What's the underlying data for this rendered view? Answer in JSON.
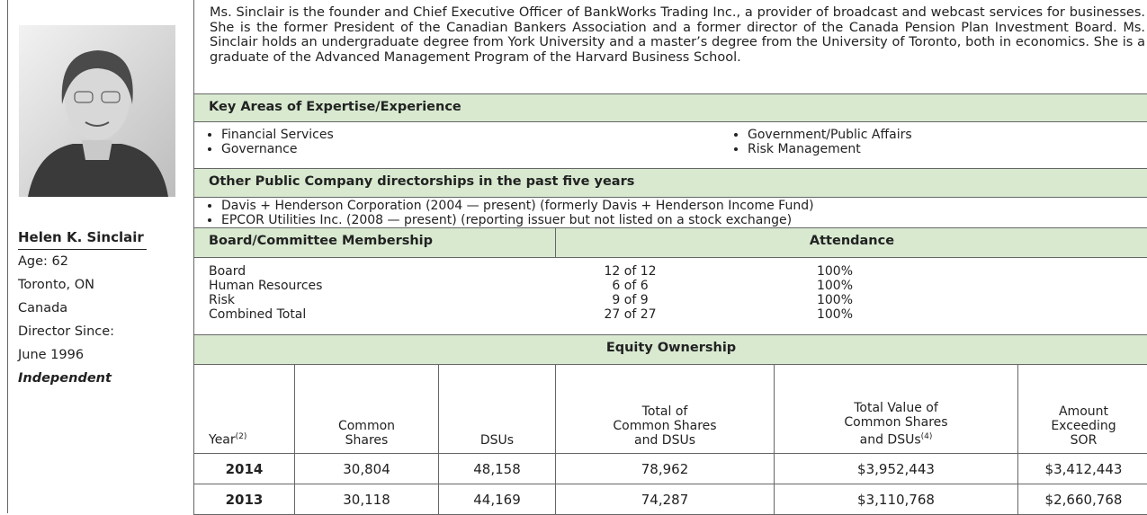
{
  "profile": {
    "name": "Helen K. Sinclair",
    "details": [
      "Age: 62",
      "Toronto, ON",
      "Canada",
      "Director Since:",
      "June 1996"
    ],
    "status": "Independent"
  },
  "bio": "Ms. Sinclair is the founder and Chief Executive Officer of BankWorks Trading Inc., a provider of broadcast and webcast services for businesses. She is the former President of the Canadian Bankers Association and a former director of the Canada Pension Plan Investment Board. Ms. Sinclair holds an undergraduate degree from York University and a master’s degree from the University of Toronto, both in economics. She is a graduate of the Advanced Management Program of the Harvard Business School.",
  "expertise": {
    "title": "Key Areas of Expertise/Experience",
    "items": [
      "Financial Services",
      "Governance",
      "Government/Public Affairs",
      "Risk Management"
    ]
  },
  "directorships": {
    "title": "Other Public Company directorships in the past five years",
    "items": [
      "Davis + Henderson Corporation (2004 — present) (formerly Davis + Henderson Income Fund)",
      "EPCOR Utilities Inc. (2008 — present) (reporting issuer but not listed on a stock exchange)"
    ]
  },
  "membership": {
    "title": "Board/Committee Membership",
    "attendance_title": "Attendance",
    "rows": [
      [
        "Board",
        "12 of 12",
        "100%"
      ],
      [
        "Human Resources",
        "6 of 6",
        "100%"
      ],
      [
        "Risk",
        "9 of 9",
        "100%"
      ],
      [
        "Combined Total",
        "27 of 27",
        "100%"
      ]
    ]
  },
  "equity": {
    "title": "Equity Ownership",
    "headers": [
      {
        "text": "Year",
        "note": "(2)"
      },
      {
        "text": "Common\nShares"
      },
      {
        "text": "DSUs"
      },
      {
        "text": "Total of\nCommon Shares\nand DSUs"
      },
      {
        "text": "Total Value of\nCommon Shares\nand DSUs",
        "note": "(4)"
      },
      {
        "text": "Amount\nExceeding\nSOR"
      }
    ],
    "rows": [
      [
        "2014",
        "30,804",
        "48,158",
        "78,962",
        "$3,952,443",
        "$3,412,443"
      ],
      [
        "2013",
        "30,118",
        "44,169",
        "74,287",
        "$3,110,768",
        "$2,660,768"
      ]
    ]
  }
}
